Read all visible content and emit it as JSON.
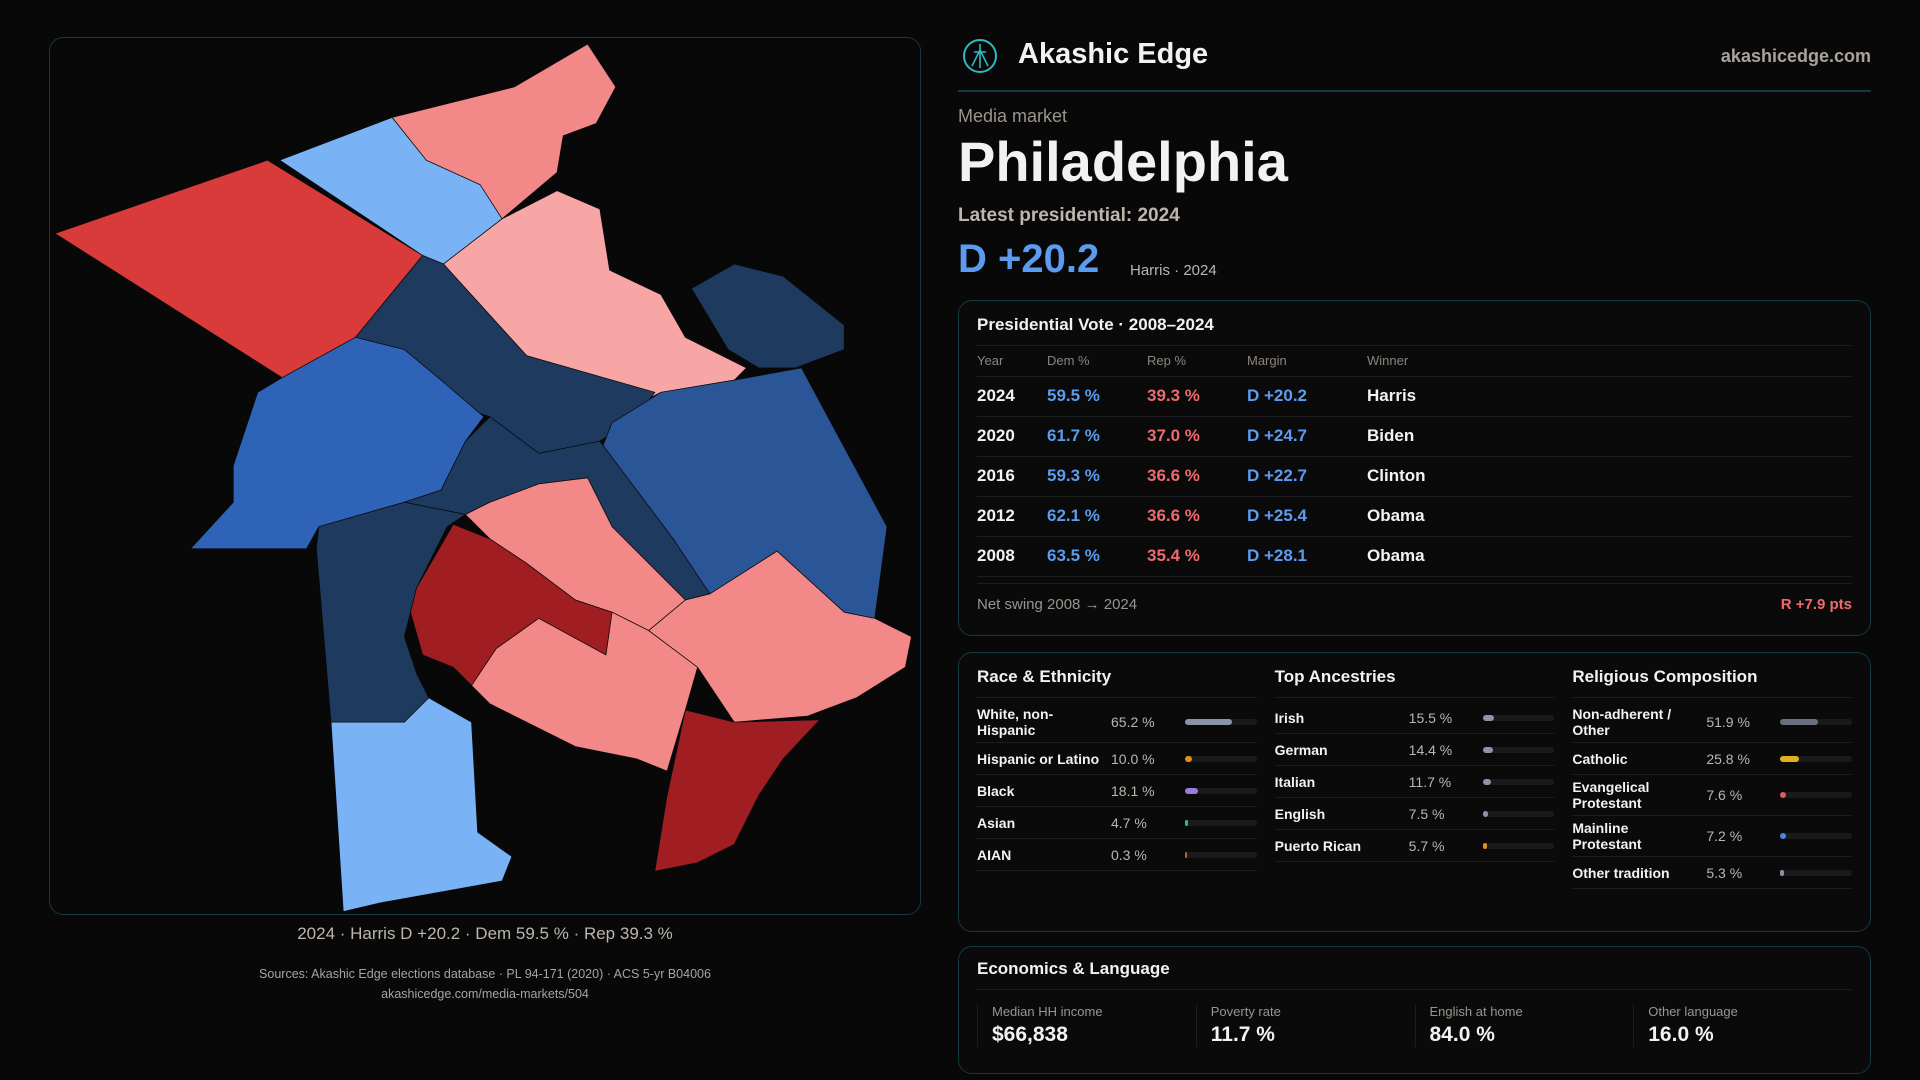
{
  "brand": {
    "name": "Akashic Edge",
    "site": "akashicedge.com"
  },
  "header": {
    "kicker": "Media market",
    "city": "Philadelphia",
    "latest": "Latest presidential: 2024",
    "margin": "D +20.2",
    "margin_sub": "Harris · 2024"
  },
  "map": {
    "caption": "2024 · Harris D +20.2 · Dem 59.5 % · Rep 39.3 %",
    "colors": {
      "safe_r": "#a01e22",
      "likely_r": "#d93a3a",
      "lean_r": "#f28888",
      "tilt_r": "#f7a5a5",
      "tilt_d": "#7ab3f5",
      "lean_d": "#2f63b8",
      "likely_d": "#2a5597",
      "safe_d": "#1e3a5f"
    }
  },
  "vote": {
    "title": "Presidential Vote · 2008–2024",
    "headers": [
      "Year",
      "Dem %",
      "Rep %",
      "Margin",
      "Winner"
    ],
    "rows": [
      [
        "2024",
        "59.5 %",
        "39.3 %",
        "D +20.2",
        "Harris"
      ],
      [
        "2020",
        "61.7 %",
        "37.0 %",
        "D +24.7",
        "Biden"
      ],
      [
        "2016",
        "59.3 %",
        "36.6 %",
        "D +22.7",
        "Clinton"
      ],
      [
        "2012",
        "62.1 %",
        "36.6 %",
        "D +25.4",
        "Obama"
      ],
      [
        "2008",
        "63.5 %",
        "35.4 %",
        "D +28.1",
        "Obama"
      ]
    ],
    "swing_label": "Net swing 2008 → 2024",
    "swing_value": "R +7.9 pts"
  },
  "demo": [
    {
      "title": "Race & Ethnicity",
      "items": [
        {
          "label": "White, non-Hispanic",
          "value": "65.2 %",
          "pct": 65.2,
          "color": "#8a94a8"
        },
        {
          "label": "Hispanic or Latino",
          "value": "10.0 %",
          "pct": 10.0,
          "color": "#e0901a"
        },
        {
          "label": "Black",
          "value": "18.1 %",
          "pct": 18.1,
          "color": "#9b7be0"
        },
        {
          "label": "Asian",
          "value": "4.7 %",
          "pct": 4.7,
          "color": "#22c08a"
        },
        {
          "label": "AIAN",
          "value": "0.3 %",
          "pct": 0.3,
          "color": "#c05a3a"
        }
      ]
    },
    {
      "title": "Top Ancestries",
      "items": [
        {
          "label": "Irish",
          "value": "15.5 %",
          "pct": 15.5,
          "color": "#8a94a8"
        },
        {
          "label": "German",
          "value": "14.4 %",
          "pct": 14.4,
          "color": "#8a94a8"
        },
        {
          "label": "Italian",
          "value": "11.7 %",
          "pct": 11.7,
          "color": "#8a94a8"
        },
        {
          "label": "English",
          "value": "7.5 %",
          "pct": 7.5,
          "color": "#8a94a8"
        },
        {
          "label": "Puerto Rican",
          "value": "5.7 %",
          "pct": 5.7,
          "color": "#e0901a"
        }
      ]
    },
    {
      "title": "Religious Composition",
      "items": [
        {
          "label": "Non-adherent / Other",
          "value": "51.9 %",
          "pct": 51.9,
          "color": "#6b7080"
        },
        {
          "label": "Catholic",
          "value": "25.8 %",
          "pct": 25.8,
          "color": "#e0b020"
        },
        {
          "label": "Evangelical Protestant",
          "value": "7.6 %",
          "pct": 7.6,
          "color": "#e05a5a"
        },
        {
          "label": "Mainline Protestant",
          "value": "7.2 %",
          "pct": 7.2,
          "color": "#4a86e0"
        },
        {
          "label": "Other tradition",
          "value": "5.3 %",
          "pct": 5.3,
          "color": "#8a94a8"
        }
      ]
    }
  ],
  "econ": {
    "title": "Economics & Language",
    "items": [
      {
        "label": "Median HH income",
        "value": "$66,838"
      },
      {
        "label": "Poverty rate",
        "value": "11.7 %"
      },
      {
        "label": "English at home",
        "value": "84.0 %"
      },
      {
        "label": "Other language",
        "value": "16.0 %"
      }
    ]
  },
  "sources": {
    "line1": "Sources: Akashic Edge elections database · PL 94-171 (2020) · ACS 5-yr B04006",
    "line2": "akashicedge.com/media-markets/504"
  }
}
